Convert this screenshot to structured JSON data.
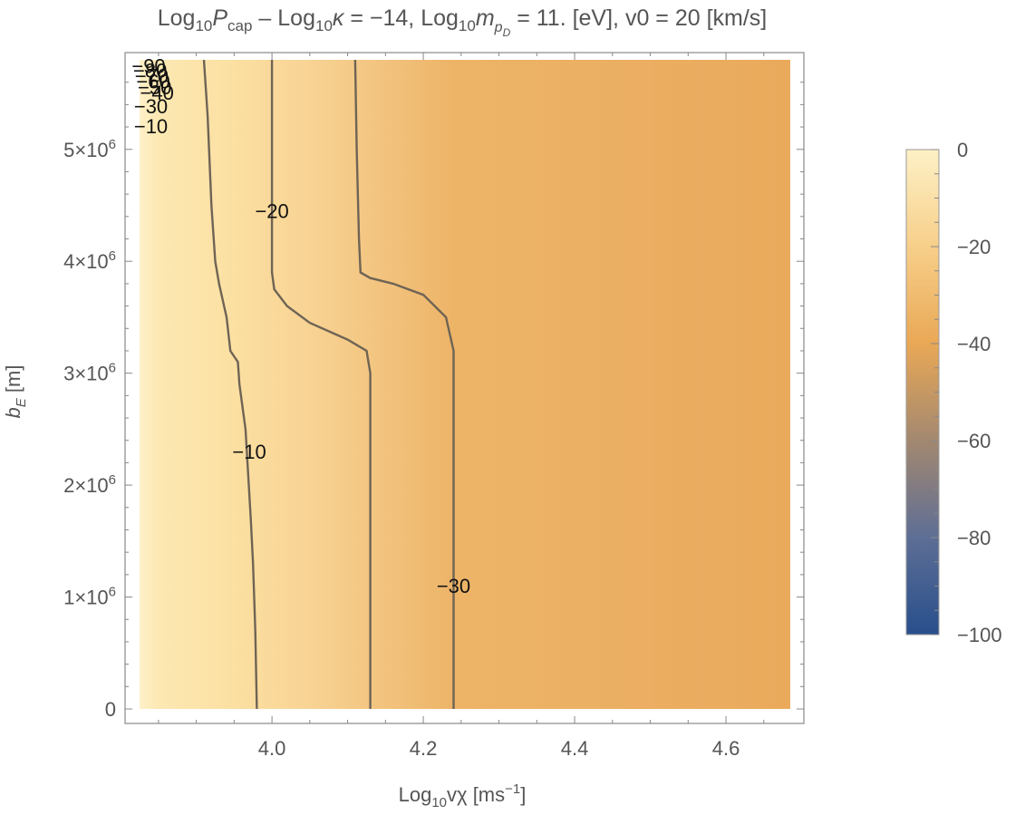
{
  "chart_data": {
    "type": "heatmap",
    "title": "Log10Pcap – Log10κ = −14, Log10mpD = 11. [eV], v0 = 20 [km/s]",
    "title_parts": {
      "t1": "Log",
      "t1s": "10",
      "t2": "P",
      "t2s": "cap",
      "t3": " – Log",
      "t3s": "10",
      "t4": "κ",
      "t5": " = −14, Log",
      "t5s": "10",
      "t6": "m",
      "t6s": "p",
      "t6ss": "D",
      "t7": " = 11. [eV], v0 = 20 [km/s]"
    },
    "xlabel": "Log10vχ [ms−1]",
    "xlabel_parts": {
      "a": "Log",
      "as": "10",
      "b": "vχ [ms",
      "sup": "−1",
      "c": "]"
    },
    "ylabel": "bE [m]",
    "ylabel_parts": {
      "a": "b",
      "as": "E",
      "b": " [m]"
    },
    "xlim": [
      3.825,
      4.685
    ],
    "ylim": [
      0,
      5800000
    ],
    "x_ticks": [
      {
        "value": 4.0,
        "label": "4.0"
      },
      {
        "value": 4.2,
        "label": "4.2"
      },
      {
        "value": 4.4,
        "label": "4.4"
      },
      {
        "value": 4.6,
        "label": "4.6"
      }
    ],
    "y_ticks": [
      {
        "value": 0,
        "mant": "0",
        "exp": ""
      },
      {
        "value": 1000000,
        "mant": "1×10",
        "exp": "6"
      },
      {
        "value": 2000000,
        "mant": "2×10",
        "exp": "6"
      },
      {
        "value": 3000000,
        "mant": "3×10",
        "exp": "6"
      },
      {
        "value": 4000000,
        "mant": "4×10",
        "exp": "6"
      },
      {
        "value": 5000000,
        "mant": "5×10",
        "exp": "6"
      }
    ],
    "colorbar": {
      "range": [
        -100,
        0
      ],
      "ticks": [
        0,
        -20,
        -40,
        -60,
        -80,
        -100
      ],
      "labels": [
        "0",
        "−20",
        "−40",
        "−60",
        "−80",
        "−100"
      ],
      "stops": [
        {
          "value": 0,
          "color": "#fdf1c6"
        },
        {
          "value": -20,
          "color": "#f7cf8a"
        },
        {
          "value": -40,
          "color": "#e9a856"
        },
        {
          "value": -60,
          "color": "#a38870"
        },
        {
          "value": -80,
          "color": "#5e6e95"
        },
        {
          "value": -100,
          "color": "#284f8c"
        }
      ]
    },
    "heatmap_gradient_x": [
      {
        "x": 3.825,
        "color": "#fdf0c8"
      },
      {
        "x": 3.85,
        "color": "#fde8b2"
      },
      {
        "x": 3.95,
        "color": "#fbe0a2"
      },
      {
        "x": 4.05,
        "color": "#f8d394"
      },
      {
        "x": 4.13,
        "color": "#f3c682"
      },
      {
        "x": 4.24,
        "color": "#edb468"
      },
      {
        "x": 4.45,
        "color": "#ebaf63"
      },
      {
        "x": 4.685,
        "color": "#eaaa5c"
      }
    ],
    "contours": [
      {
        "level": -10,
        "label": "−10",
        "label_at": [
          3.97,
          2300000
        ],
        "points": [
          [
            3.98,
            0
          ],
          [
            3.978,
            700000
          ],
          [
            3.975,
            1300000
          ],
          [
            3.972,
            1700000
          ],
          [
            3.965,
            2500000
          ],
          [
            3.957,
            2900000
          ],
          [
            3.955,
            3100000
          ],
          [
            3.945,
            3200000
          ],
          [
            3.94,
            3500000
          ],
          [
            3.93,
            3800000
          ],
          [
            3.925,
            4000000
          ],
          [
            3.92,
            4500000
          ],
          [
            3.915,
            5300000
          ],
          [
            3.91,
            5800000
          ]
        ]
      },
      {
        "level": -20,
        "label": "−20",
        "label_at": [
          4.0,
          4450000
        ],
        "points": [
          [
            4.13,
            0
          ],
          [
            4.13,
            2000000
          ],
          [
            4.13,
            3000000
          ],
          [
            4.125,
            3200000
          ],
          [
            4.1,
            3300000
          ],
          [
            4.05,
            3450000
          ],
          [
            4.02,
            3600000
          ],
          [
            4.003,
            3750000
          ],
          [
            4.0,
            3900000
          ],
          [
            4.0,
            4500000
          ],
          [
            4.0,
            5800000
          ]
        ]
      },
      {
        "level": -30,
        "label": "−30",
        "label_at": [
          4.24,
          1100000
        ],
        "points": [
          [
            4.24,
            0
          ],
          [
            4.24,
            1000000
          ],
          [
            4.24,
            3200000
          ],
          [
            4.23,
            3500000
          ],
          [
            4.2,
            3700000
          ],
          [
            4.16,
            3800000
          ],
          [
            4.13,
            3850000
          ],
          [
            4.117,
            3900000
          ],
          [
            4.115,
            4200000
          ],
          [
            4.112,
            5000000
          ],
          [
            4.11,
            5800000
          ]
        ]
      }
    ],
    "crowded_labels": [
      {
        "text": "−10",
        "at": [
          3.84,
          5200000
        ]
      },
      {
        "text": "−30",
        "at": [
          3.84,
          5380000
        ]
      },
      {
        "text": "−40",
        "at": [
          3.848,
          5500000
        ]
      },
      {
        "text": "−50",
        "at": [
          3.845,
          5550000
        ]
      },
      {
        "text": "−60",
        "at": [
          3.843,
          5600000
        ]
      },
      {
        "text": "−70",
        "at": [
          3.841,
          5650000
        ]
      },
      {
        "text": "−80",
        "at": [
          3.839,
          5700000
        ]
      },
      {
        "text": "−90",
        "at": [
          3.837,
          5740000
        ]
      }
    ]
  }
}
